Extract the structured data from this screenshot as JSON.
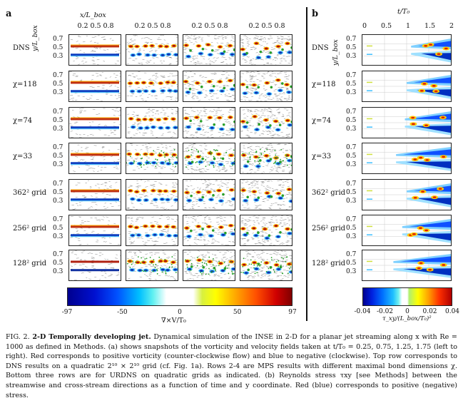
{
  "panel_a": {
    "label": "a",
    "x_axis_label": "x/L_box",
    "x_ticks": [
      "0.2",
      "0.5",
      "0.8"
    ],
    "y_axis_label": "y/L_box",
    "y_ticks": [
      "0.7",
      "0.5",
      "0.3"
    ],
    "rows": [
      "DNS",
      "χ=118",
      "χ=74",
      "χ=33",
      "362² grid",
      "256² grid",
      "128² grid"
    ],
    "colorbar": {
      "ticks": [
        "-97",
        "-50",
        "0",
        "50",
        "97"
      ],
      "label": "∇×V/T₀"
    }
  },
  "panel_b": {
    "label": "b",
    "x_axis_label": "t/T₀",
    "x_ticks": [
      "0",
      "0.5",
      "1",
      "1.5",
      "2"
    ],
    "y_axis_label": "y/L_box",
    "y_ticks": [
      "0.7",
      "0.5",
      "0.3"
    ],
    "rows": [
      "DNS",
      "χ=118",
      "χ=74",
      "χ=33",
      "362² grid",
      "256² grid",
      "128² grid"
    ],
    "colorbar": {
      "ticks": [
        "-0.04",
        "-0.02",
        "0",
        "0.02",
        "0.04"
      ],
      "label": "τ_xy/(L_box/T₀)²"
    }
  },
  "caption": {
    "fig": "FIG. 2.",
    "title": "2-D Temporally developing jet.",
    "text": "Dynamical simulation of the INSE in 2-D for a planar jet streaming along x with Re = 1000 as defined in Methods. (a) shows snapshots of the vorticity and velocity fields taken at t/T₀ = 0.25, 0.75, 1.25, 1.75 (left to right). Red corresponds to positive vorticity (counter-clockwise flow) and blue to negative (clockwise). Top row corresponds to DNS results on a quadratic 2¹⁰ × 2¹⁰ grid (cf. Fig. 1a). Rows 2-4 are MPS results with different maximal bond dimensions χ. Bottom three rows are for URDNS on quadratic grids as indicated. (b) Reynolds stress τxy [see Methods] between the streamwise and cross-stream directions as a function of time and y coordinate. Red (blue) corresponds to positive (negative) stress."
  },
  "colors": {
    "positive": "#b01010",
    "negative": "#1030b0",
    "green": "#2aa02a"
  }
}
